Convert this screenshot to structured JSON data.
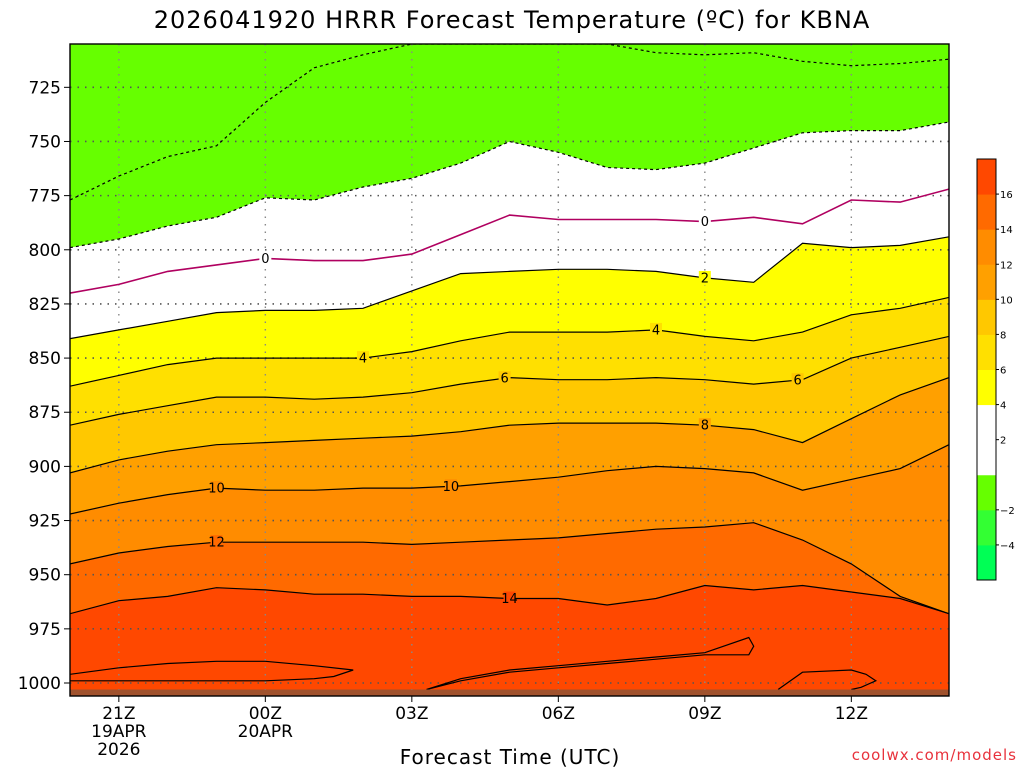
{
  "chart_data": {
    "type": "contour",
    "title": "2026041920 HRRR Forecast Temperature (ºC) for KBNA",
    "xlabel": "Forecast Time (UTC)",
    "credit": "coolwx.com/models",
    "x_ticks": [
      {
        "lines": [
          "21Z",
          "19APR",
          "2026"
        ]
      },
      {
        "lines": [
          "00Z",
          "20APR"
        ]
      },
      {
        "lines": [
          "03Z"
        ]
      },
      {
        "lines": [
          "06Z"
        ]
      },
      {
        "lines": [
          "09Z"
        ]
      },
      {
        "lines": [
          "12Z"
        ]
      }
    ],
    "x_range_hours": [
      -1,
      17
    ],
    "x_tick_hours": [
      0,
      3,
      6,
      9,
      12,
      15
    ],
    "y_ticks": [
      725,
      750,
      775,
      800,
      825,
      850,
      875,
      900,
      925,
      950,
      975,
      1000
    ],
    "y_range_hpa": [
      705,
      1006
    ],
    "y_axis": "pressure (hPa), inverted",
    "surface_fill_below_hpa": 1003,
    "surface_color": "#a0522d",
    "colorbar": {
      "levels": [
        -6,
        -4,
        -2,
        0,
        2,
        4,
        6,
        8,
        10,
        12,
        14,
        16,
        18
      ],
      "tick_labels": [
        "−4",
        "−2",
        "2",
        "4",
        "6",
        "8",
        "10",
        "12",
        "14",
        "16"
      ],
      "colors": [
        "#00ff55",
        "#33ff33",
        "#66ff00",
        "#ffffff",
        "#ffffff",
        "#ffff00",
        "#ffe000",
        "#ffc800",
        "#ffa000",
        "#ff8c00",
        "#ff6a00",
        "#ff4800"
      ]
    },
    "isotherms": [
      {
        "value": -2,
        "style": "dashed",
        "hours": [
          -1,
          0,
          1,
          2,
          3,
          4,
          5,
          6,
          7,
          8,
          9,
          10,
          11,
          12,
          13,
          14,
          15,
          16,
          17
        ],
        "pressure": [
          777,
          766,
          757,
          752,
          732,
          716,
          710,
          705,
          705,
          705,
          705,
          705,
          709,
          710,
          709,
          713,
          715,
          714,
          712
        ]
      },
      {
        "value": -2,
        "style": "dashed",
        "hours": [
          -1,
          0,
          1,
          2,
          3,
          4,
          5,
          6,
          7,
          8,
          9,
          10,
          11,
          12,
          13,
          14,
          15,
          16,
          17
        ],
        "pressure": [
          799,
          795,
          789,
          785,
          776,
          777,
          771,
          767,
          760,
          750,
          755,
          762,
          763,
          760,
          753,
          746,
          745,
          745,
          741
        ]
      },
      {
        "value": 0,
        "style": "solid",
        "color": "#b00060",
        "label_hours": [
          3,
          12
        ],
        "hours": [
          -1,
          0,
          1,
          2,
          3,
          4,
          5,
          6,
          7,
          8,
          9,
          10,
          11,
          12,
          13,
          14,
          15,
          16,
          17
        ],
        "pressure": [
          820,
          816,
          810,
          807,
          804,
          805,
          805,
          802,
          793,
          784,
          786,
          786,
          786,
          787,
          785,
          788,
          777,
          778,
          772
        ]
      },
      {
        "value": 2,
        "style": "solid",
        "label_hours": [
          12
        ],
        "hours": [
          -1,
          0,
          1,
          2,
          3,
          4,
          5,
          6,
          7,
          8,
          9,
          10,
          11,
          12,
          13,
          14,
          15,
          16,
          17
        ],
        "pressure": [
          841,
          837,
          833,
          829,
          828,
          828,
          827,
          819,
          811,
          810,
          809,
          809,
          810,
          813,
          815,
          797,
          799,
          798,
          794
        ]
      },
      {
        "value": 4,
        "style": "solid",
        "label_hours": [
          5,
          11
        ],
        "hours": [
          -1,
          0,
          1,
          2,
          3,
          4,
          5,
          6,
          7,
          8,
          9,
          10,
          11,
          12,
          13,
          14,
          15,
          16,
          17
        ],
        "pressure": [
          863,
          858,
          853,
          850,
          850,
          850,
          850,
          847,
          842,
          838,
          838,
          838,
          837,
          840,
          842,
          838,
          830,
          827,
          822
        ]
      },
      {
        "value": 6,
        "style": "solid",
        "label_hours": [
          7.9,
          13.9
        ],
        "hours": [
          -1,
          0,
          1,
          2,
          3,
          4,
          5,
          6,
          7,
          8,
          9,
          10,
          11,
          12,
          13,
          14,
          15,
          16,
          17
        ],
        "pressure": [
          881,
          876,
          872,
          868,
          868,
          869,
          868,
          866,
          862,
          859,
          860,
          860,
          859,
          860,
          862,
          860,
          850,
          845,
          840
        ]
      },
      {
        "value": 8,
        "style": "solid",
        "label_hours": [
          12
        ],
        "hours": [
          -1,
          0,
          1,
          2,
          3,
          4,
          5,
          6,
          7,
          8,
          9,
          10,
          11,
          12,
          13,
          14,
          15,
          16,
          17
        ],
        "pressure": [
          903,
          897,
          893,
          890,
          889,
          888,
          887,
          886,
          884,
          881,
          880,
          880,
          880,
          881,
          883,
          889,
          878,
          867,
          859
        ]
      },
      {
        "value": 10,
        "style": "solid",
        "label_hours": [
          2,
          6.8
        ],
        "hours": [
          -1,
          0,
          1,
          2,
          3,
          4,
          5,
          6,
          7,
          8,
          9,
          10,
          11,
          12,
          13,
          14,
          15,
          16,
          17
        ],
        "pressure": [
          922,
          917,
          913,
          910,
          911,
          911,
          910,
          910,
          909,
          907,
          905,
          902,
          900,
          901,
          903,
          911,
          906,
          901,
          890
        ]
      },
      {
        "value": 12,
        "style": "solid",
        "label_hours": [
          2
        ],
        "hours": [
          -1,
          0,
          1,
          2,
          3,
          4,
          5,
          6,
          7,
          8,
          9,
          10,
          11,
          12,
          13,
          14,
          15,
          16,
          17
        ],
        "pressure": [
          945,
          940,
          937,
          935,
          935,
          935,
          935,
          936,
          935,
          934,
          933,
          931,
          929,
          928,
          926,
          934,
          945,
          960,
          968
        ]
      },
      {
        "value": 14,
        "style": "solid",
        "label_hours": [
          8
        ],
        "hours": [
          -1,
          0,
          1,
          2,
          3,
          4,
          5,
          6,
          7,
          8,
          9,
          10,
          11,
          12,
          13,
          14,
          15,
          16,
          17
        ],
        "pressure": [
          968,
          962,
          960,
          956,
          957,
          959,
          959,
          960,
          960,
          961,
          961,
          964,
          961,
          955,
          957,
          955,
          958,
          961,
          968
        ]
      },
      {
        "value": 14,
        "style": "solid",
        "closed": true,
        "hours": [
          6.3,
          7,
          8,
          9,
          10,
          11,
          12,
          12.9,
          13,
          12.9,
          12,
          11,
          10,
          9,
          8,
          7,
          6.3
        ],
        "pressure": [
          1003,
          998,
          994,
          992,
          990,
          988,
          986,
          979,
          983,
          987,
          987,
          989,
          991,
          993,
          995,
          999,
          1003
        ]
      },
      {
        "value": 16,
        "style": "solid",
        "hours": [
          -1,
          0,
          1,
          2,
          3,
          4,
          4.8,
          4.4,
          4,
          3,
          2,
          1,
          0,
          -1
        ],
        "pressure": [
          996,
          993,
          991,
          990,
          990,
          992,
          994,
          997,
          998,
          999,
          999,
          999,
          999,
          999
        ]
      },
      {
        "value": 16,
        "style": "solid",
        "hours": [
          13.5,
          14,
          15,
          15.3,
          15.5,
          15.2,
          15
        ],
        "pressure": [
          1003,
          995,
          994,
          996,
          999,
          1002,
          1003
        ]
      }
    ]
  }
}
